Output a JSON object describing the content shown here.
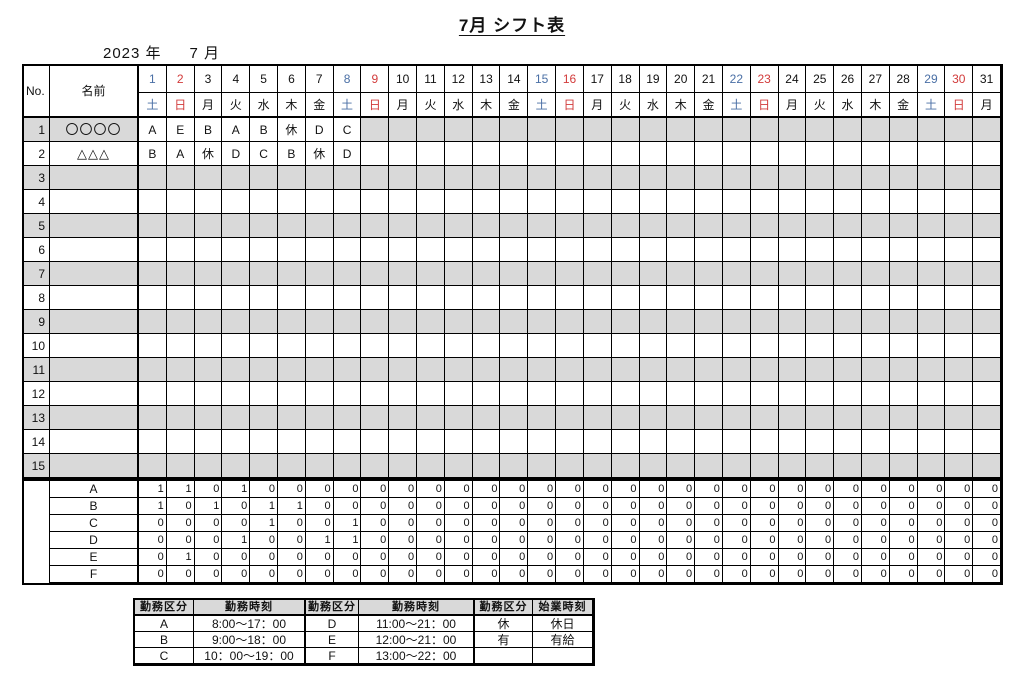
{
  "title": "7月 シフト表",
  "period": {
    "year": "2023 年",
    "month": "7 月"
  },
  "colors": {
    "saturday": "#4a6fa5",
    "sunday": "#d23b3b",
    "row_shade": "#d9d9d9",
    "border": "#000000"
  },
  "table": {
    "no_header": "No.",
    "name_header": "名前",
    "days": [
      {
        "n": "1",
        "w": "土"
      },
      {
        "n": "2",
        "w": "日"
      },
      {
        "n": "3",
        "w": "月"
      },
      {
        "n": "4",
        "w": "火"
      },
      {
        "n": "5",
        "w": "水"
      },
      {
        "n": "6",
        "w": "木"
      },
      {
        "n": "7",
        "w": "金"
      },
      {
        "n": "8",
        "w": "土"
      },
      {
        "n": "9",
        "w": "日"
      },
      {
        "n": "10",
        "w": "月"
      },
      {
        "n": "11",
        "w": "火"
      },
      {
        "n": "12",
        "w": "水"
      },
      {
        "n": "13",
        "w": "木"
      },
      {
        "n": "14",
        "w": "金"
      },
      {
        "n": "15",
        "w": "土"
      },
      {
        "n": "16",
        "w": "日"
      },
      {
        "n": "17",
        "w": "月"
      },
      {
        "n": "18",
        "w": "火"
      },
      {
        "n": "19",
        "w": "水"
      },
      {
        "n": "20",
        "w": "木"
      },
      {
        "n": "21",
        "w": "金"
      },
      {
        "n": "22",
        "w": "土"
      },
      {
        "n": "23",
        "w": "日"
      },
      {
        "n": "24",
        "w": "月"
      },
      {
        "n": "25",
        "w": "火"
      },
      {
        "n": "26",
        "w": "水"
      },
      {
        "n": "27",
        "w": "木"
      },
      {
        "n": "28",
        "w": "金"
      },
      {
        "n": "29",
        "w": "土"
      },
      {
        "n": "30",
        "w": "日"
      },
      {
        "n": "31",
        "w": "月"
      }
    ],
    "rows": [
      {
        "no": "1",
        "name": "〇〇〇〇",
        "shifts": [
          "A",
          "E",
          "B",
          "A",
          "B",
          "休",
          "D",
          "C"
        ]
      },
      {
        "no": "2",
        "name": "△△△",
        "shifts": [
          "B",
          "A",
          "休",
          "D",
          "C",
          "B",
          "休",
          "D"
        ]
      },
      {
        "no": "3",
        "name": "",
        "shifts": []
      },
      {
        "no": "4",
        "name": "",
        "shifts": []
      },
      {
        "no": "5",
        "name": "",
        "shifts": []
      },
      {
        "no": "6",
        "name": "",
        "shifts": []
      },
      {
        "no": "7",
        "name": "",
        "shifts": []
      },
      {
        "no": "8",
        "name": "",
        "shifts": []
      },
      {
        "no": "9",
        "name": "",
        "shifts": []
      },
      {
        "no": "10",
        "name": "",
        "shifts": []
      },
      {
        "no": "11",
        "name": "",
        "shifts": []
      },
      {
        "no": "12",
        "name": "",
        "shifts": []
      },
      {
        "no": "13",
        "name": "",
        "shifts": []
      },
      {
        "no": "14",
        "name": "",
        "shifts": []
      },
      {
        "no": "15",
        "name": "",
        "shifts": []
      }
    ]
  },
  "summary": {
    "rows": [
      {
        "label": "A",
        "counts": [
          1,
          1,
          0,
          1,
          0,
          0,
          0,
          0,
          0,
          0,
          0,
          0,
          0,
          0,
          0,
          0,
          0,
          0,
          0,
          0,
          0,
          0,
          0,
          0,
          0,
          0,
          0,
          0,
          0,
          0,
          0
        ]
      },
      {
        "label": "B",
        "counts": [
          1,
          0,
          1,
          0,
          1,
          1,
          0,
          0,
          0,
          0,
          0,
          0,
          0,
          0,
          0,
          0,
          0,
          0,
          0,
          0,
          0,
          0,
          0,
          0,
          0,
          0,
          0,
          0,
          0,
          0,
          0
        ]
      },
      {
        "label": "C",
        "counts": [
          0,
          0,
          0,
          0,
          1,
          0,
          0,
          1,
          0,
          0,
          0,
          0,
          0,
          0,
          0,
          0,
          0,
          0,
          0,
          0,
          0,
          0,
          0,
          0,
          0,
          0,
          0,
          0,
          0,
          0,
          0
        ]
      },
      {
        "label": "D",
        "counts": [
          0,
          0,
          0,
          1,
          0,
          0,
          1,
          1,
          0,
          0,
          0,
          0,
          0,
          0,
          0,
          0,
          0,
          0,
          0,
          0,
          0,
          0,
          0,
          0,
          0,
          0,
          0,
          0,
          0,
          0,
          0
        ]
      },
      {
        "label": "E",
        "counts": [
          0,
          1,
          0,
          0,
          0,
          0,
          0,
          0,
          0,
          0,
          0,
          0,
          0,
          0,
          0,
          0,
          0,
          0,
          0,
          0,
          0,
          0,
          0,
          0,
          0,
          0,
          0,
          0,
          0,
          0,
          0
        ]
      },
      {
        "label": "F",
        "counts": [
          0,
          0,
          0,
          0,
          0,
          0,
          0,
          0,
          0,
          0,
          0,
          0,
          0,
          0,
          0,
          0,
          0,
          0,
          0,
          0,
          0,
          0,
          0,
          0,
          0,
          0,
          0,
          0,
          0,
          0,
          0
        ]
      }
    ]
  },
  "legend": {
    "headers": [
      "勤務区分",
      "勤務時刻",
      "勤務区分",
      "勤務時刻",
      "勤務区分",
      "始業時刻"
    ],
    "rows": [
      [
        "A",
        "8:00～17：00",
        "D",
        "11:00～21：00",
        "休",
        "休日"
      ],
      [
        "B",
        "9:00～18：00",
        "E",
        "12:00～21：00",
        "有",
        "有給"
      ],
      [
        "C",
        "10：00～19：00",
        "F",
        "13:00～22：00",
        "",
        ""
      ]
    ]
  }
}
